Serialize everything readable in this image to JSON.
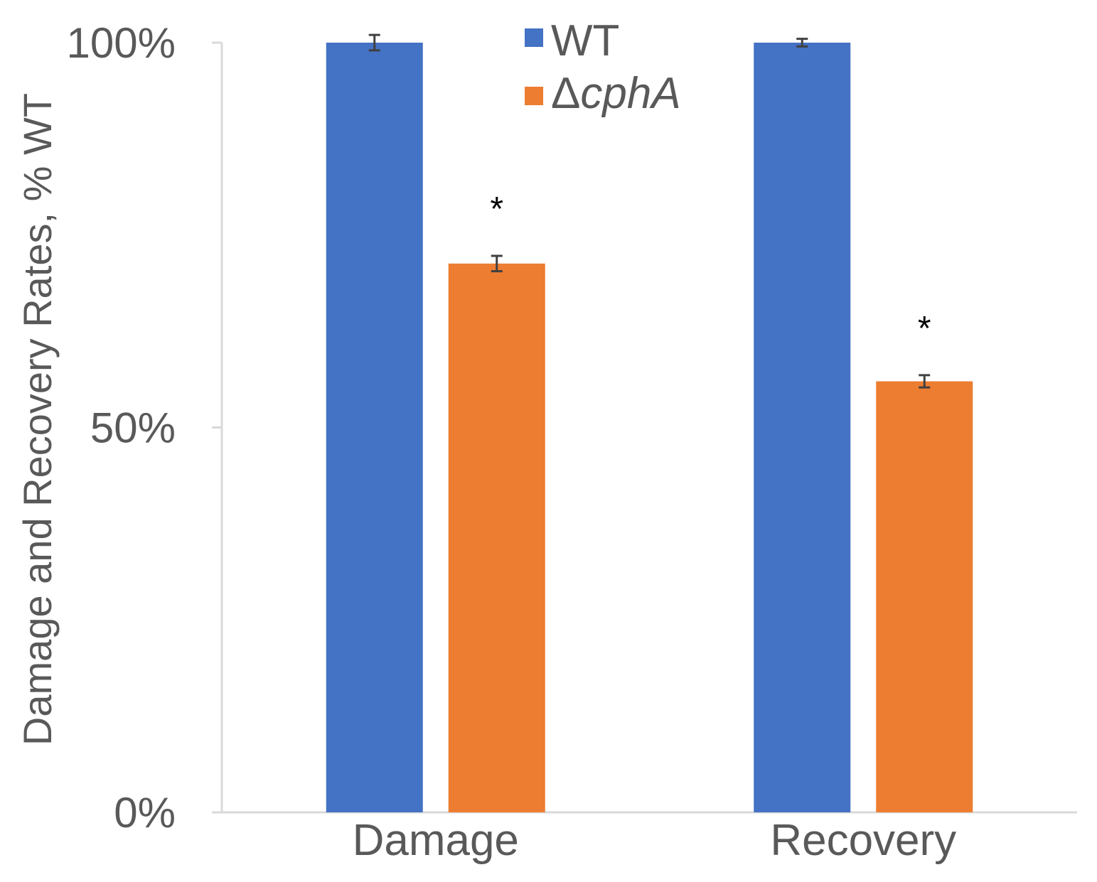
{
  "chart_data": {
    "type": "bar",
    "title": "",
    "xlabel": "",
    "ylabel": "Damage and Recovery Rates, % WT",
    "categories": [
      "Damage",
      "Recovery"
    ],
    "series": [
      {
        "name": "WT",
        "color": "#4472C4",
        "values": [
          100,
          100
        ],
        "errors": [
          1.0,
          0.5
        ]
      },
      {
        "name": "ΔcphA",
        "name_prefix": "Δ",
        "name_italic": "cphA",
        "color": "#ED7D31",
        "values": [
          71.3,
          56.0
        ],
        "errors": [
          1.0,
          0.8
        ]
      }
    ],
    "significance": [
      {
        "series": 1,
        "category": 0,
        "label": "*"
      },
      {
        "series": 1,
        "category": 1,
        "label": "*"
      }
    ],
    "ylim": [
      0,
      100
    ],
    "yticks": [
      0,
      50,
      100
    ],
    "ytick_labels": [
      "0%",
      "50%",
      "100%"
    ],
    "grid": false,
    "legend_position": "top-center"
  }
}
